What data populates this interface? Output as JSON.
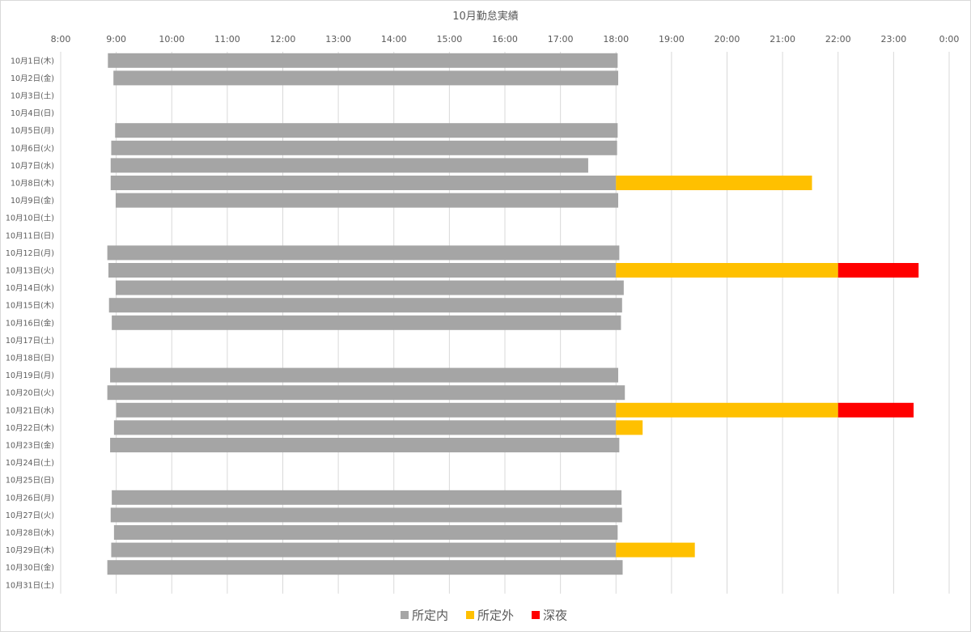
{
  "chart_data": {
    "type": "bar",
    "orientation": "horizontal-stacked",
    "title": "10月勤怠実績",
    "x_axis": {
      "position": "top",
      "range_hours": [
        8,
        24
      ],
      "tick_labels": [
        "8:00",
        "9:00",
        "10:00",
        "11:00",
        "12:00",
        "13:00",
        "14:00",
        "15:00",
        "16:00",
        "17:00",
        "18:00",
        "19:00",
        "20:00",
        "21:00",
        "22:00",
        "23:00",
        "0:00"
      ]
    },
    "grid": "vertical",
    "legend_position": "bottom",
    "series": [
      {
        "name": "所定内",
        "color": "#a5a5a5"
      },
      {
        "name": "所定外",
        "color": "#ffc000"
      },
      {
        "name": "深夜",
        "color": "#ff0000"
      }
    ],
    "categories": [
      "10月1日(木)",
      "10月2日(金)",
      "10月3日(土)",
      "10月4日(日)",
      "10月5日(月)",
      "10月6日(火)",
      "10月7日(水)",
      "10月8日(木)",
      "10月9日(金)",
      "10月10日(土)",
      "10月11日(日)",
      "10月12日(月)",
      "10月13日(火)",
      "10月14日(水)",
      "10月15日(木)",
      "10月16日(金)",
      "10月17日(土)",
      "10月18日(日)",
      "10月19日(月)",
      "10月20日(火)",
      "10月21日(水)",
      "10月22日(木)",
      "10月23日(金)",
      "10月24日(土)",
      "10月25日(日)",
      "10月26日(月)",
      "10月27日(火)",
      "10月28日(水)",
      "10月29日(木)",
      "10月30日(金)",
      "10月31日(土)"
    ],
    "rows": [
      {
        "start": 8.85,
        "regular_end": 18.03,
        "overtime_end": null,
        "night_end": null
      },
      {
        "start": 8.95,
        "regular_end": 18.04,
        "overtime_end": null,
        "night_end": null
      },
      null,
      null,
      {
        "start": 8.98,
        "regular_end": 18.03,
        "overtime_end": null,
        "night_end": null
      },
      {
        "start": 8.91,
        "regular_end": 18.02,
        "overtime_end": null,
        "night_end": null
      },
      {
        "start": 8.9,
        "regular_end": 17.5,
        "overtime_end": null,
        "night_end": null
      },
      {
        "start": 8.9,
        "regular_end": 18.0,
        "overtime_end": 21.53,
        "night_end": null
      },
      {
        "start": 8.99,
        "regular_end": 18.04,
        "overtime_end": null,
        "night_end": null
      },
      null,
      null,
      {
        "start": 8.84,
        "regular_end": 18.06,
        "overtime_end": null,
        "night_end": null
      },
      {
        "start": 8.86,
        "regular_end": 18.0,
        "overtime_end": 22.0,
        "night_end": 23.45
      },
      {
        "start": 8.99,
        "regular_end": 18.14,
        "overtime_end": null,
        "night_end": null
      },
      {
        "start": 8.87,
        "regular_end": 18.11,
        "overtime_end": null,
        "night_end": null
      },
      {
        "start": 8.92,
        "regular_end": 18.09,
        "overtime_end": null,
        "night_end": null
      },
      null,
      null,
      {
        "start": 8.89,
        "regular_end": 18.04,
        "overtime_end": null,
        "night_end": null
      },
      {
        "start": 8.84,
        "regular_end": 18.16,
        "overtime_end": null,
        "night_end": null
      },
      {
        "start": 9.0,
        "regular_end": 18.0,
        "overtime_end": 22.0,
        "night_end": 23.36
      },
      {
        "start": 8.96,
        "regular_end": 18.0,
        "overtime_end": 18.48,
        "night_end": null
      },
      {
        "start": 8.89,
        "regular_end": 18.06,
        "overtime_end": null,
        "night_end": null
      },
      null,
      null,
      {
        "start": 8.92,
        "regular_end": 18.1,
        "overtime_end": null,
        "night_end": null
      },
      {
        "start": 8.9,
        "regular_end": 18.11,
        "overtime_end": null,
        "night_end": null
      },
      {
        "start": 8.96,
        "regular_end": 18.03,
        "overtime_end": null,
        "night_end": null
      },
      {
        "start": 8.91,
        "regular_end": 18.0,
        "overtime_end": 19.42,
        "night_end": null
      },
      {
        "start": 8.84,
        "regular_end": 18.12,
        "overtime_end": null,
        "night_end": null
      },
      null
    ]
  }
}
